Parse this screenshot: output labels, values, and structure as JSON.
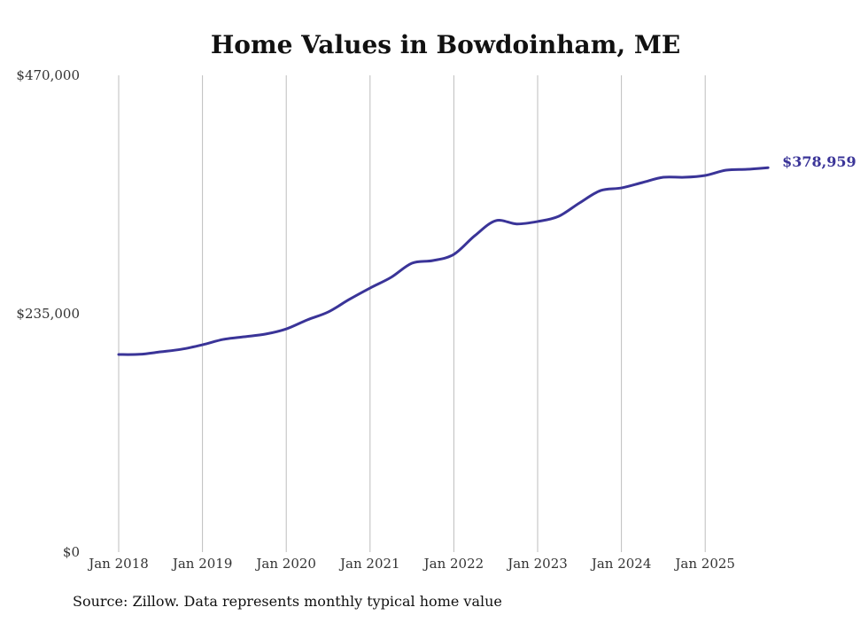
{
  "chart_data": {
    "type": "line",
    "title": "Home Values in Bowdoinham, ME",
    "xlabel": "",
    "ylabel": "",
    "source": "Source: Zillow. Data represents monthly typical home value",
    "ylim": [
      0,
      470000
    ],
    "y_ticks": [
      {
        "value": 0,
        "label": "$0"
      },
      {
        "value": 235000,
        "label": "$235,000"
      },
      {
        "value": 470000,
        "label": "$470,000"
      }
    ],
    "x_ticks": [
      {
        "value": 2018,
        "label": "Jan 2018"
      },
      {
        "value": 2019,
        "label": "Jan 2019"
      },
      {
        "value": 2020,
        "label": "Jan 2020"
      },
      {
        "value": 2021,
        "label": "Jan 2021"
      },
      {
        "value": 2022,
        "label": "Jan 2022"
      },
      {
        "value": 2023,
        "label": "Jan 2023"
      },
      {
        "value": 2024,
        "label": "Jan 2024"
      },
      {
        "value": 2025,
        "label": "Jan 2025"
      }
    ],
    "grid": "vertical",
    "line_color": "#3a3498",
    "end_label": "$378,959",
    "series": [
      {
        "name": "Typical home value",
        "x": [
          2018.0,
          2018.25,
          2018.5,
          2018.75,
          2019.0,
          2019.25,
          2019.5,
          2019.75,
          2020.0,
          2020.25,
          2020.5,
          2020.75,
          2021.0,
          2021.25,
          2021.5,
          2021.75,
          2022.0,
          2022.25,
          2022.5,
          2022.75,
          2023.0,
          2023.25,
          2023.5,
          2023.75,
          2024.0,
          2024.25,
          2024.5,
          2024.75,
          2025.0,
          2025.25,
          2025.5,
          2025.75
        ],
        "values": [
          194800,
          195000,
          197400,
          200000,
          204400,
          209700,
          212300,
          214900,
          220000,
          228900,
          236700,
          249000,
          260300,
          270800,
          284800,
          287400,
          293500,
          311900,
          326700,
          323500,
          325900,
          331000,
          344200,
          356400,
          359000,
          364300,
          369500,
          369500,
          371300,
          376500,
          377400,
          378959
        ]
      }
    ]
  }
}
